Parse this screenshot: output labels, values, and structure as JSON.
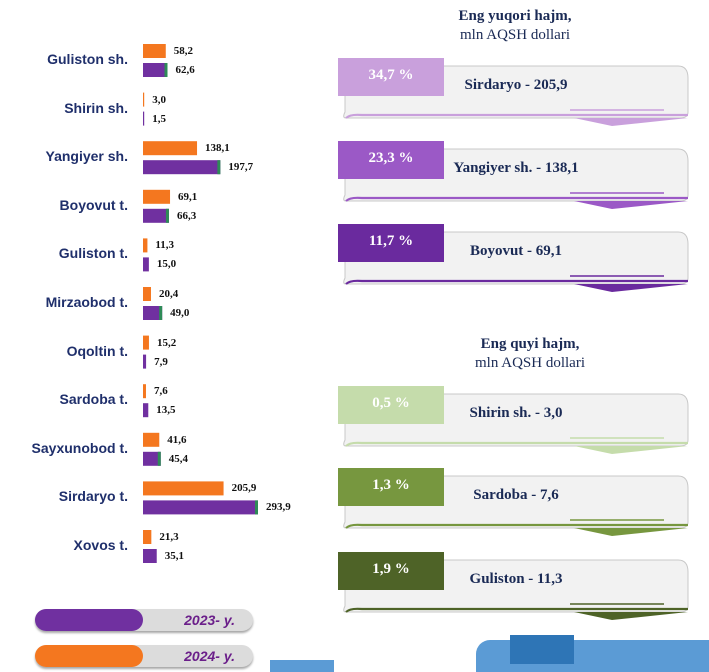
{
  "chart_data": {
    "type": "bar",
    "categories": [
      "Guliston sh.",
      "Shirin sh.",
      "Yangiyer sh.",
      "Boyovut t.",
      "Guliston t.",
      "Mirzaobod t.",
      "Oqoltin t.",
      "Sardoba t.",
      "Sayxunobod t.",
      "Sirdaryo t.",
      "Xovos t."
    ],
    "series": [
      {
        "name": "2024- y.",
        "color": "#f4771f",
        "values": [
          58.2,
          3.0,
          138.1,
          69.1,
          11.3,
          20.4,
          15.2,
          7.6,
          41.6,
          205.9,
          21.3
        ],
        "labels": [
          "58,2",
          "3,0",
          "138,1",
          "69,1",
          "11,3",
          "20,4",
          "15,2",
          "7,6",
          "41,6",
          "205,9",
          "21,3"
        ]
      },
      {
        "name": "2023- y.",
        "color": "#7030a0",
        "values": [
          62.6,
          1.5,
          197.7,
          66.3,
          15.0,
          49.0,
          7.9,
          13.5,
          45.4,
          293.9,
          35.1
        ],
        "labels": [
          "62,6",
          "1,5",
          "197,7",
          "66,3",
          "15,0",
          "49,0",
          "7,9",
          "13,5",
          "45,4",
          "293,9",
          "35,1"
        ]
      }
    ]
  },
  "legend": [
    {
      "label": "2023- y.",
      "color": "#7030a0"
    },
    {
      "label": "2024- y.",
      "color": "#f4771f"
    }
  ],
  "top_panel": {
    "title": "Eng yuqori hajm,",
    "subtitle": "mln AQSH dollari",
    "cards": [
      {
        "badge": "34,7 %",
        "text": "Sirdaryo - 205,9",
        "color": "#c9a0dc",
        "accent": "#c9a0dc"
      },
      {
        "badge": "23,3 %",
        "text": "Yangiyer sh. - 138,1",
        "color": "#9b59c6",
        "accent": "#9b59c6"
      },
      {
        "badge": "11,7 %",
        "text": "Boyovut  - 69,1",
        "color": "#6a2a9e",
        "accent": "#6a2a9e"
      }
    ]
  },
  "bottom_panel": {
    "title": "Eng quyi hajm,",
    "subtitle": "mln AQSH dollari",
    "cards": [
      {
        "badge": "0,5 %",
        "text": "Shirin sh. -  3,0",
        "color": "#c5dcab",
        "accent": "#c5dcab"
      },
      {
        "badge": "1,3 %",
        "text": "Sardoba - 7,6",
        "color": "#77973f",
        "accent": "#77973f"
      },
      {
        "badge": "1,9 %",
        "text": "Guliston - 11,3",
        "color": "#4e6327",
        "accent": "#4e6327"
      }
    ]
  }
}
